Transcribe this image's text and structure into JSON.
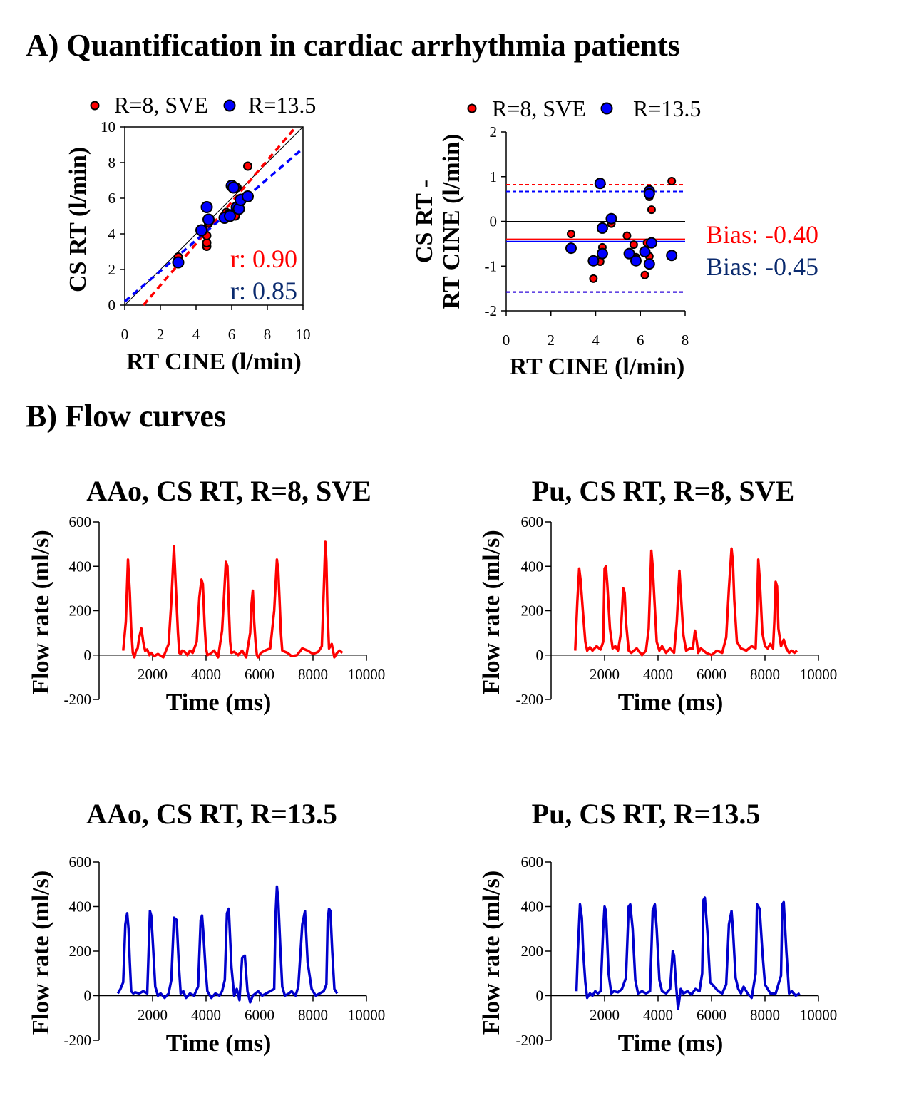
{
  "section_a_title": "A) Quantification in cardiac arrhythmia patients",
  "section_b_title": "B) Flow curves",
  "chart_data": [
    {
      "id": "correlation",
      "type": "scatter",
      "xlabel": "RT CINE (l/min)",
      "ylabel": "CS RT (l/min)",
      "xlim": [
        0,
        10
      ],
      "ylim": [
        0,
        10
      ],
      "xticks": [
        "0",
        "2",
        "4",
        "6",
        "8",
        "10"
      ],
      "yticks": [
        "0",
        "2",
        "4",
        "6",
        "8",
        "10"
      ],
      "legend": [
        "R=8, SVE",
        "R=13.5"
      ],
      "annotations": [
        "r: 0.90",
        "r: 0.85"
      ],
      "identity_line": [
        [
          0,
          0
        ],
        [
          10,
          10
        ]
      ],
      "regression_lines": [
        {
          "series": "R=8, SVE",
          "from": [
            1.05,
            0
          ],
          "to": [
            9.6,
            10
          ]
        },
        {
          "series": "R=13.5",
          "from": [
            0,
            0.2
          ],
          "to": [
            10,
            8.8
          ]
        }
      ],
      "series": [
        {
          "name": "R=8, SVE",
          "color": "#ff0000",
          "x": [
            3.0,
            4.4,
            4.6,
            4.6,
            4.6,
            4.7,
            5.7,
            5.8,
            6.1,
            6.2,
            6.2,
            6.3,
            6.5,
            6.9
          ],
          "y": [
            2.7,
            4.2,
            3.3,
            3.5,
            3.9,
            4.6,
            5.2,
            5.1,
            6.7,
            5.0,
            5.5,
            6.6,
            6.0,
            7.8
          ]
        },
        {
          "name": "R=13.5",
          "color": "#0000ff",
          "x": [
            3.0,
            4.3,
            4.6,
            4.7,
            5.6,
            5.9,
            6.0,
            6.1,
            6.3,
            6.4,
            6.5,
            6.9
          ],
          "y": [
            2.4,
            4.2,
            5.5,
            4.8,
            4.9,
            5.0,
            6.7,
            6.6,
            5.5,
            5.4,
            5.9,
            6.1
          ]
        }
      ]
    },
    {
      "id": "bland-altman",
      "type": "scatter",
      "xlabel": "RT CINE (l/min)",
      "ylabel": [
        "CS RT -",
        "RT CINE (l/min)"
      ],
      "xlim": [
        0,
        8
      ],
      "ylim": [
        -2,
        2
      ],
      "xticks": [
        "0",
        "2",
        "4",
        "6",
        "8"
      ],
      "yticks": [
        "-2",
        "-1",
        "0",
        "1",
        "2"
      ],
      "legend": [
        "R=8, SVE",
        "R=13.5"
      ],
      "annotations": [
        "Bias: -0.40",
        "Bias: -0.45"
      ],
      "bias_lines": [
        {
          "series": "R=8, SVE",
          "bias": -0.4,
          "upper": 0.82,
          "lower": -1.58
        },
        {
          "series": "R=13.5",
          "bias": -0.45,
          "upper": 0.67,
          "lower": -1.58
        }
      ],
      "series": [
        {
          "name": "R=8, SVE",
          "color": "#ff0000",
          "x": [
            2.9,
            3.9,
            4.2,
            4.3,
            4.3,
            4.7,
            5.4,
            5.7,
            5.8,
            6.2,
            6.3,
            6.4,
            6.4,
            6.4,
            6.5,
            7.4
          ],
          "y": [
            -0.28,
            -1.28,
            -0.9,
            -0.12,
            -0.58,
            -0.05,
            -0.32,
            -0.52,
            -0.8,
            -1.2,
            -0.48,
            -0.78,
            0.55,
            0.72,
            0.26,
            0.9
          ]
        },
        {
          "name": "R=13.5",
          "color": "#0000ff",
          "x": [
            2.9,
            3.9,
            4.2,
            4.3,
            4.3,
            4.7,
            5.5,
            5.8,
            6.2,
            6.4,
            6.4,
            6.5,
            6.4,
            7.4
          ],
          "y": [
            -0.6,
            -0.88,
            0.85,
            -0.15,
            -0.72,
            0.06,
            -0.72,
            -0.88,
            -0.68,
            0.68,
            -0.95,
            -0.48,
            0.62,
            -0.76
          ]
        }
      ]
    },
    {
      "id": "aao-r8",
      "type": "line",
      "title": "AAo, CS RT, R=8, SVE",
      "xlabel": "Time (ms)",
      "ylabel": "Flow rate (ml/s)",
      "xlim": [
        0,
        10000
      ],
      "ylim": [
        -200,
        600
      ],
      "xticks": [
        "2000",
        "4000",
        "6000",
        "8000",
        "10000"
      ],
      "yticks": [
        "-200",
        "0",
        "200",
        "400",
        "600"
      ],
      "color": "#ff0000",
      "series": [
        {
          "x": [
            900,
            1000,
            1080,
            1150,
            1200,
            1260,
            1320,
            1380,
            1440,
            1500,
            1580,
            1650,
            1720,
            1800,
            1880,
            1950,
            2050,
            2200,
            2400,
            2500,
            2600,
            2700,
            2800,
            2880,
            2950,
            3000,
            3050,
            3100,
            3200,
            3300,
            3400,
            3500,
            3650,
            3750,
            3830,
            3880,
            3950,
            4000,
            4050,
            4150,
            4300,
            4450,
            4600,
            4680,
            4740,
            4800,
            4840,
            4900,
            4950,
            5050,
            5200,
            5350,
            5500,
            5650,
            5700,
            5750,
            5800,
            5850,
            5900,
            5950,
            6050,
            6200,
            6400,
            6550,
            6650,
            6700,
            6750,
            6800,
            6850,
            6950,
            7050,
            7200,
            7400,
            7600,
            7800,
            8000,
            8200,
            8330,
            8400,
            8460,
            8500,
            8540,
            8600,
            8700,
            8800,
            8900,
            9000,
            9100
          ],
          "y": [
            20,
            150,
            430,
            280,
            120,
            10,
            -10,
            20,
            30,
            80,
            120,
            60,
            20,
            25,
            0,
            10,
            -5,
            5,
            -10,
            20,
            50,
            240,
            490,
            280,
            100,
            10,
            5,
            20,
            15,
            0,
            20,
            10,
            60,
            260,
            340,
            320,
            130,
            30,
            0,
            5,
            20,
            -10,
            110,
            280,
            420,
            400,
            250,
            60,
            10,
            15,
            0,
            20,
            -10,
            100,
            230,
            290,
            150,
            60,
            0,
            -10,
            10,
            20,
            30,
            200,
            430,
            380,
            250,
            100,
            20,
            15,
            10,
            -5,
            0,
            30,
            20,
            5,
            15,
            40,
            280,
            510,
            420,
            200,
            30,
            50,
            -10,
            10,
            20,
            10
          ]
        }
      ]
    },
    {
      "id": "pu-r8",
      "type": "line",
      "title": "Pu, CS RT, R=8, SVE",
      "xlabel": "Time (ms)",
      "ylabel": "Flow rate (ml/s)",
      "xlim": [
        0,
        10000
      ],
      "ylim": [
        -200,
        600
      ],
      "xticks": [
        "2000",
        "4000",
        "6000",
        "8000",
        "10000"
      ],
      "yticks": [
        "-200",
        "0",
        "200",
        "400",
        "600"
      ],
      "color": "#ff0000",
      "series": [
        {
          "x": [
            900,
            980,
            1050,
            1100,
            1200,
            1280,
            1350,
            1450,
            1550,
            1700,
            1850,
            1950,
            2000,
            2050,
            2100,
            2200,
            2300,
            2400,
            2500,
            2600,
            2700,
            2750,
            2800,
            2900,
            3000,
            3200,
            3400,
            3550,
            3650,
            3750,
            3800,
            3850,
            3950,
            4050,
            4150,
            4300,
            4450,
            4600,
            4700,
            4800,
            4850,
            4950,
            5050,
            5200,
            5300,
            5380,
            5450,
            5500,
            5600,
            5800,
            6000,
            6200,
            6400,
            6550,
            6650,
            6750,
            6800,
            6850,
            6950,
            7100,
            7300,
            7500,
            7650,
            7700,
            7750,
            7800,
            7900,
            8000,
            8100,
            8200,
            8300,
            8350,
            8400,
            8450,
            8500,
            8600,
            8700,
            8800,
            8900,
            9000,
            9100,
            9200
          ],
          "y": [
            20,
            240,
            390,
            340,
            180,
            60,
            20,
            35,
            20,
            40,
            25,
            60,
            390,
            400,
            320,
            120,
            30,
            40,
            20,
            90,
            300,
            280,
            150,
            20,
            10,
            30,
            0,
            20,
            120,
            470,
            400,
            280,
            60,
            20,
            40,
            10,
            30,
            10,
            150,
            380,
            280,
            90,
            20,
            30,
            30,
            110,
            60,
            10,
            30,
            10,
            0,
            20,
            10,
            80,
            300,
            480,
            420,
            250,
            60,
            30,
            20,
            40,
            30,
            200,
            430,
            350,
            100,
            40,
            30,
            50,
            30,
            150,
            330,
            310,
            120,
            40,
            70,
            30,
            10,
            20,
            10,
            20
          ]
        }
      ]
    },
    {
      "id": "aao-r13",
      "type": "line",
      "title": "AAo, CS RT, R=13.5",
      "xlabel": "Time (ms)",
      "ylabel": "Flow rate (ml/s)",
      "xlim": [
        0,
        10000
      ],
      "ylim": [
        -200,
        600
      ],
      "xticks": [
        "2000",
        "4000",
        "6000",
        "8000",
        "10000"
      ],
      "yticks": [
        "-200",
        "0",
        "200",
        "400",
        "600"
      ],
      "color": "#0000cc",
      "series": [
        {
          "x": [
            700,
            800,
            900,
            980,
            1050,
            1100,
            1150,
            1200,
            1280,
            1350,
            1500,
            1650,
            1800,
            1900,
            1950,
            2000,
            2100,
            2200,
            2300,
            2450,
            2600,
            2700,
            2800,
            2900,
            2980,
            3050,
            3150,
            3250,
            3400,
            3550,
            3700,
            3800,
            3850,
            3900,
            3980,
            4050,
            4200,
            4350,
            4500,
            4600,
            4700,
            4780,
            4850,
            4950,
            5050,
            5150,
            5250,
            5350,
            5450,
            5550,
            5650,
            5750,
            5850,
            5950,
            6100,
            6250,
            6400,
            6550,
            6600,
            6650,
            6700,
            6780,
            6850,
            6950,
            7100,
            7200,
            7350,
            7450,
            7600,
            7700,
            7800,
            7950,
            8100,
            8250,
            8400,
            8500,
            8550,
            8600,
            8650,
            8720,
            8800,
            8900
          ],
          "y": [
            10,
            30,
            60,
            320,
            370,
            300,
            150,
            20,
            10,
            15,
            10,
            20,
            10,
            380,
            360,
            260,
            40,
            0,
            10,
            -10,
            10,
            70,
            350,
            340,
            140,
            10,
            20,
            -10,
            10,
            0,
            40,
            340,
            360,
            280,
            120,
            20,
            -10,
            10,
            0,
            20,
            70,
            370,
            390,
            130,
            0,
            30,
            -20,
            170,
            180,
            20,
            -30,
            0,
            10,
            20,
            0,
            10,
            20,
            30,
            360,
            490,
            430,
            210,
            40,
            0,
            10,
            20,
            0,
            40,
            320,
            380,
            150,
            30,
            0,
            10,
            20,
            50,
            340,
            390,
            380,
            200,
            30,
            10
          ]
        }
      ]
    },
    {
      "id": "pu-r13",
      "type": "line",
      "title": "Pu, CS RT, R=13.5",
      "xlabel": "Time (ms)",
      "ylabel": "Flow rate (ml/s)",
      "xlim": [
        0,
        10000
      ],
      "ylim": [
        -200,
        600
      ],
      "xticks": [
        "2000",
        "4000",
        "6000",
        "8000",
        "10000"
      ],
      "yticks": [
        "-200",
        "0",
        "200",
        "400",
        "600"
      ],
      "color": "#0000cc",
      "series": [
        {
          "x": [
            950,
            1000,
            1080,
            1150,
            1200,
            1280,
            1350,
            1450,
            1550,
            1650,
            1750,
            1850,
            1950,
            2000,
            2050,
            2150,
            2250,
            2350,
            2500,
            2650,
            2800,
            2900,
            2960,
            3050,
            3150,
            3250,
            3400,
            3550,
            3700,
            3800,
            3880,
            3950,
            4050,
            4150,
            4300,
            4450,
            4550,
            4600,
            4680,
            4750,
            4850,
            4950,
            5100,
            5250,
            5400,
            5550,
            5650,
            5700,
            5750,
            5850,
            5950,
            6100,
            6250,
            6400,
            6550,
            6650,
            6750,
            6800,
            6900,
            7000,
            7100,
            7200,
            7350,
            7500,
            7650,
            7700,
            7800,
            7900,
            8000,
            8200,
            8400,
            8600,
            8650,
            8700,
            8800,
            8900,
            9000,
            9150,
            9300
          ],
          "y": [
            20,
            200,
            410,
            350,
            200,
            60,
            -10,
            10,
            0,
            20,
            10,
            20,
            300,
            400,
            380,
            100,
            10,
            20,
            15,
            30,
            80,
            400,
            410,
            300,
            70,
            10,
            20,
            10,
            20,
            380,
            410,
            300,
            70,
            20,
            10,
            30,
            200,
            180,
            40,
            -60,
            30,
            10,
            20,
            5,
            30,
            20,
            100,
            430,
            440,
            280,
            60,
            40,
            20,
            10,
            50,
            320,
            380,
            300,
            80,
            30,
            10,
            40,
            10,
            -10,
            100,
            410,
            390,
            200,
            50,
            10,
            10,
            90,
            410,
            420,
            200,
            10,
            20,
            0,
            10
          ]
        }
      ]
    }
  ]
}
